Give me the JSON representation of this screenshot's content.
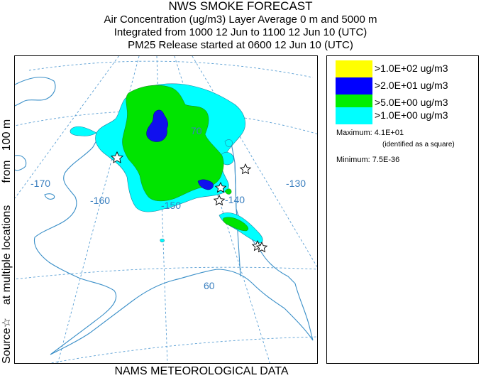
{
  "header": {
    "title": "NWS SMOKE FORECAST",
    "line1": "Air Concentration (ug/m3) Layer Average    0 m and  5000 m",
    "line2": "Integrated from 1000 12 Jun to 1100 12 Jun 10 (UTC)",
    "line3": "PM25 Release started at 0600 12 Jun 10 (UTC)"
  },
  "side_label": "Source☆    at multiple locations       from   100 m",
  "footer": "NAMS METEOROLOGICAL DATA",
  "map": {
    "longitude_labels": [
      "-170",
      "-160",
      "-150",
      "-140",
      "-130"
    ],
    "latitude_labels": [
      "70",
      "60"
    ],
    "colors": {
      "land_outline": "#3a8fc8",
      "graticule": "#5a9fd4",
      "cyan": "#00ffff",
      "green": "#00e400",
      "blue": "#1010ee",
      "yellow": "#ffff00"
    }
  },
  "legend": {
    "items": [
      {
        "label": ">1.0E+02 ug/m3",
        "color": "#ffff00"
      },
      {
        "label": ">2.0E+01 ug/m3",
        "color": "#0000ff"
      },
      {
        "label": ">5.0E+00 ug/m3",
        "color": "#00ee00"
      },
      {
        "label": ">1.0E+00 ug/m3",
        "color": "#00ffff"
      }
    ],
    "maximum": "Maximum: 4.1E+01",
    "maximum_note": "(identified as a square)",
    "minimum": "Minimum: 7.5E-36"
  }
}
